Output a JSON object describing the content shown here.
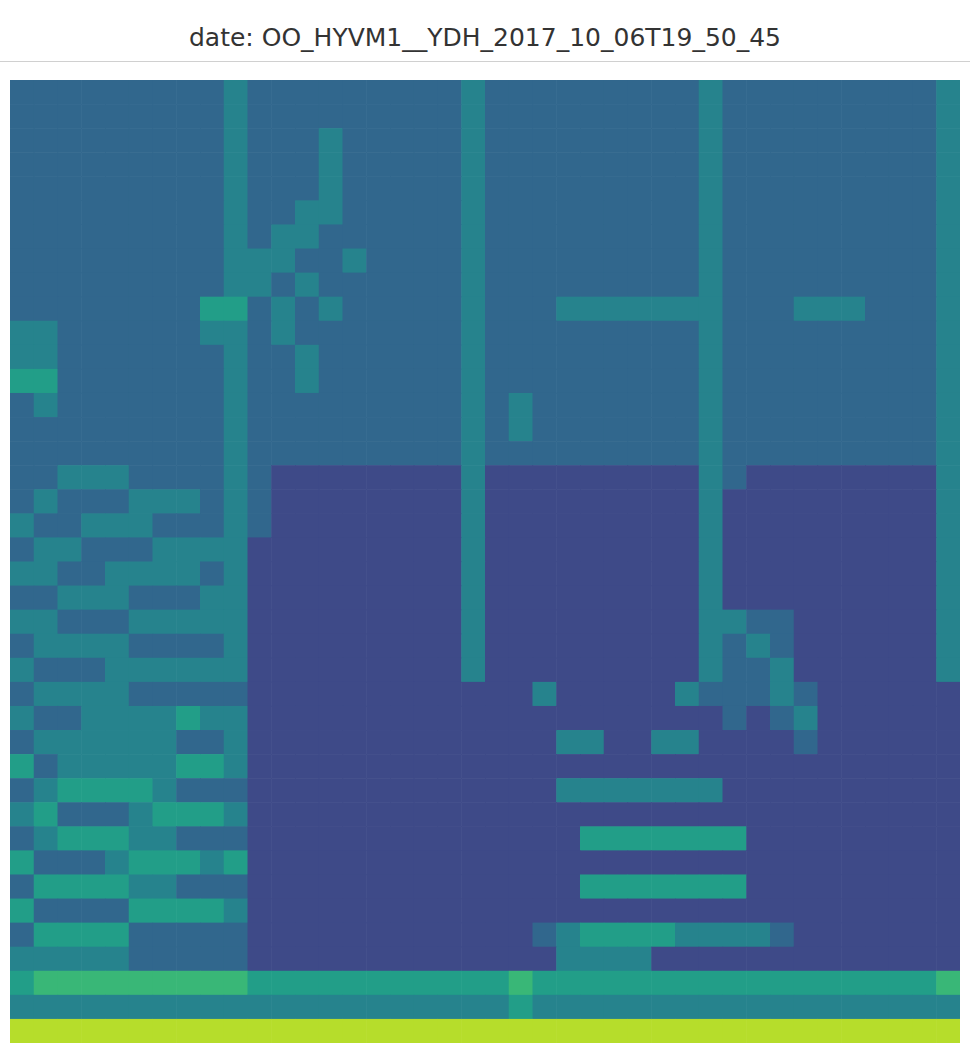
{
  "chart_data": {
    "type": "heatmap",
    "title": "date: OO_HYVM1__YDH_2017_10_06T19_50_45",
    "tick_labels": false,
    "xlim": [
      0,
      40
    ],
    "ylim": [
      0,
      40
    ],
    "zlim": [
      0,
      9
    ],
    "cells": [
      [
        3,
        3,
        3,
        3,
        3,
        3,
        3,
        3,
        3,
        4,
        3,
        3,
        3,
        3,
        3,
        3,
        3,
        3,
        3,
        4,
        3,
        3,
        3,
        3,
        3,
        3,
        3,
        3,
        3,
        4,
        3,
        3,
        3,
        3,
        3,
        3,
        3,
        3,
        3,
        4
      ],
      [
        3,
        3,
        3,
        3,
        3,
        3,
        3,
        3,
        3,
        4,
        3,
        3,
        3,
        3,
        3,
        3,
        3,
        3,
        3,
        4,
        3,
        3,
        3,
        3,
        3,
        3,
        3,
        3,
        3,
        4,
        3,
        3,
        3,
        3,
        3,
        3,
        3,
        3,
        3,
        4
      ],
      [
        3,
        3,
        3,
        3,
        3,
        3,
        3,
        3,
        3,
        4,
        3,
        3,
        3,
        4,
        3,
        3,
        3,
        3,
        3,
        4,
        3,
        3,
        3,
        3,
        3,
        3,
        3,
        3,
        3,
        4,
        3,
        3,
        3,
        3,
        3,
        3,
        3,
        3,
        3,
        4
      ],
      [
        3,
        3,
        3,
        3,
        3,
        3,
        3,
        3,
        3,
        4,
        3,
        3,
        3,
        4,
        3,
        3,
        3,
        3,
        3,
        4,
        3,
        3,
        3,
        3,
        3,
        3,
        3,
        3,
        3,
        4,
        3,
        3,
        3,
        3,
        3,
        3,
        3,
        3,
        3,
        4
      ],
      [
        3,
        3,
        3,
        3,
        3,
        3,
        3,
        3,
        3,
        4,
        3,
        3,
        3,
        4,
        3,
        3,
        3,
        3,
        3,
        4,
        3,
        3,
        3,
        3,
        3,
        3,
        3,
        3,
        3,
        4,
        3,
        3,
        3,
        3,
        3,
        3,
        3,
        3,
        3,
        4
      ],
      [
        3,
        3,
        3,
        3,
        3,
        3,
        3,
        3,
        3,
        4,
        3,
        3,
        4,
        4,
        3,
        3,
        3,
        3,
        3,
        4,
        3,
        3,
        3,
        3,
        3,
        3,
        3,
        3,
        3,
        4,
        3,
        3,
        3,
        3,
        3,
        3,
        3,
        3,
        3,
        4
      ],
      [
        3,
        3,
        3,
        3,
        3,
        3,
        3,
        3,
        3,
        4,
        3,
        4,
        4,
        3,
        3,
        3,
        3,
        3,
        3,
        4,
        3,
        3,
        3,
        3,
        3,
        3,
        3,
        3,
        3,
        4,
        3,
        3,
        3,
        3,
        3,
        3,
        3,
        3,
        3,
        4
      ],
      [
        3,
        3,
        3,
        3,
        3,
        3,
        3,
        3,
        3,
        4,
        4,
        4,
        3,
        3,
        4,
        3,
        3,
        3,
        3,
        4,
        3,
        3,
        3,
        3,
        3,
        3,
        3,
        3,
        3,
        4,
        3,
        3,
        3,
        3,
        3,
        3,
        3,
        3,
        3,
        4
      ],
      [
        3,
        3,
        3,
        3,
        3,
        3,
        3,
        3,
        3,
        4,
        4,
        3,
        4,
        3,
        3,
        3,
        3,
        3,
        3,
        4,
        3,
        3,
        3,
        3,
        3,
        3,
        3,
        3,
        3,
        4,
        3,
        3,
        3,
        3,
        3,
        3,
        3,
        3,
        3,
        4
      ],
      [
        3,
        3,
        3,
        3,
        3,
        3,
        3,
        3,
        5,
        5,
        3,
        4,
        3,
        4,
        3,
        3,
        3,
        3,
        3,
        4,
        3,
        3,
        3,
        4,
        4,
        4,
        4,
        4,
        4,
        4,
        3,
        3,
        3,
        4,
        4,
        4,
        3,
        3,
        3,
        4
      ],
      [
        4,
        4,
        3,
        3,
        3,
        3,
        3,
        3,
        4,
        4,
        3,
        4,
        3,
        3,
        3,
        3,
        3,
        3,
        3,
        4,
        3,
        3,
        3,
        3,
        3,
        3,
        3,
        3,
        3,
        4,
        3,
        3,
        3,
        3,
        3,
        3,
        3,
        3,
        3,
        4
      ],
      [
        4,
        4,
        3,
        3,
        3,
        3,
        3,
        3,
        3,
        4,
        3,
        3,
        4,
        3,
        3,
        3,
        3,
        3,
        3,
        4,
        3,
        3,
        3,
        3,
        3,
        3,
        3,
        3,
        3,
        4,
        3,
        3,
        3,
        3,
        3,
        3,
        3,
        3,
        3,
        4
      ],
      [
        5,
        5,
        3,
        3,
        3,
        3,
        3,
        3,
        3,
        4,
        3,
        3,
        4,
        3,
        3,
        3,
        3,
        3,
        3,
        4,
        3,
        3,
        3,
        3,
        3,
        3,
        3,
        3,
        3,
        4,
        3,
        3,
        3,
        3,
        3,
        3,
        3,
        3,
        3,
        4
      ],
      [
        3,
        4,
        3,
        3,
        3,
        3,
        3,
        3,
        3,
        4,
        3,
        3,
        3,
        3,
        3,
        3,
        3,
        3,
        3,
        4,
        3,
        4,
        3,
        3,
        3,
        3,
        3,
        3,
        3,
        4,
        3,
        3,
        3,
        3,
        3,
        3,
        3,
        3,
        3,
        4
      ],
      [
        3,
        3,
        3,
        3,
        3,
        3,
        3,
        3,
        3,
        4,
        3,
        3,
        3,
        3,
        3,
        3,
        3,
        3,
        3,
        4,
        3,
        4,
        3,
        3,
        3,
        3,
        3,
        3,
        3,
        4,
        3,
        3,
        3,
        3,
        3,
        3,
        3,
        3,
        3,
        4
      ],
      [
        3,
        3,
        3,
        3,
        3,
        3,
        3,
        3,
        3,
        4,
        3,
        3,
        3,
        3,
        3,
        3,
        3,
        3,
        3,
        4,
        3,
        3,
        3,
        3,
        3,
        3,
        3,
        3,
        3,
        4,
        3,
        3,
        3,
        3,
        3,
        3,
        3,
        3,
        3,
        4
      ],
      [
        3,
        3,
        4,
        4,
        4,
        3,
        3,
        3,
        3,
        4,
        3,
        2,
        2,
        2,
        2,
        2,
        2,
        2,
        2,
        4,
        2,
        2,
        2,
        2,
        2,
        2,
        2,
        2,
        2,
        4,
        3,
        2,
        2,
        2,
        2,
        2,
        2,
        2,
        2,
        4
      ],
      [
        3,
        4,
        3,
        3,
        3,
        4,
        4,
        4,
        3,
        4,
        3,
        2,
        2,
        2,
        2,
        2,
        2,
        2,
        2,
        4,
        2,
        2,
        2,
        2,
        2,
        2,
        2,
        2,
        2,
        4,
        2,
        2,
        2,
        2,
        2,
        2,
        2,
        2,
        2,
        4
      ],
      [
        4,
        3,
        3,
        4,
        4,
        4,
        3,
        3,
        3,
        4,
        3,
        2,
        2,
        2,
        2,
        2,
        2,
        2,
        2,
        4,
        2,
        2,
        2,
        2,
        2,
        2,
        2,
        2,
        2,
        4,
        2,
        2,
        2,
        2,
        2,
        2,
        2,
        2,
        2,
        4
      ],
      [
        3,
        4,
        4,
        3,
        3,
        3,
        4,
        4,
        4,
        4,
        2,
        2,
        2,
        2,
        2,
        2,
        2,
        2,
        2,
        4,
        2,
        2,
        2,
        2,
        2,
        2,
        2,
        2,
        2,
        4,
        2,
        2,
        2,
        2,
        2,
        2,
        2,
        2,
        2,
        4
      ],
      [
        4,
        4,
        3,
        3,
        4,
        4,
        4,
        4,
        3,
        4,
        2,
        2,
        2,
        2,
        2,
        2,
        2,
        2,
        2,
        4,
        2,
        2,
        2,
        2,
        2,
        2,
        2,
        2,
        2,
        4,
        2,
        2,
        2,
        2,
        2,
        2,
        2,
        2,
        2,
        4
      ],
      [
        3,
        3,
        4,
        4,
        4,
        3,
        3,
        3,
        4,
        4,
        2,
        2,
        2,
        2,
        2,
        2,
        2,
        2,
        2,
        4,
        2,
        2,
        2,
        2,
        2,
        2,
        2,
        2,
        2,
        4,
        2,
        2,
        2,
        2,
        2,
        2,
        2,
        2,
        2,
        4
      ],
      [
        4,
        4,
        3,
        3,
        3,
        4,
        4,
        4,
        4,
        4,
        2,
        2,
        2,
        2,
        2,
        2,
        2,
        2,
        2,
        4,
        2,
        2,
        2,
        2,
        2,
        2,
        2,
        2,
        2,
        4,
        4,
        3,
        3,
        2,
        2,
        2,
        2,
        2,
        2,
        4
      ],
      [
        3,
        4,
        4,
        4,
        4,
        3,
        3,
        3,
        3,
        4,
        2,
        2,
        2,
        2,
        2,
        2,
        2,
        2,
        2,
        4,
        2,
        2,
        2,
        2,
        2,
        2,
        2,
        2,
        2,
        4,
        3,
        4,
        3,
        2,
        2,
        2,
        2,
        2,
        2,
        4
      ],
      [
        4,
        3,
        3,
        3,
        4,
        4,
        4,
        4,
        4,
        4,
        2,
        2,
        2,
        2,
        2,
        2,
        2,
        2,
        2,
        4,
        2,
        2,
        2,
        2,
        2,
        2,
        2,
        2,
        2,
        4,
        3,
        3,
        4,
        2,
        2,
        2,
        2,
        2,
        2,
        4
      ],
      [
        3,
        4,
        4,
        4,
        4,
        3,
        3,
        3,
        3,
        3,
        2,
        2,
        2,
        2,
        2,
        2,
        2,
        2,
        2,
        2,
        2,
        2,
        4,
        2,
        2,
        2,
        2,
        2,
        4,
        3,
        3,
        3,
        4,
        3,
        2,
        2,
        2,
        2,
        2,
        2
      ],
      [
        4,
        3,
        3,
        4,
        4,
        4,
        4,
        5,
        4,
        4,
        2,
        2,
        2,
        2,
        2,
        2,
        2,
        2,
        2,
        2,
        2,
        2,
        2,
        2,
        2,
        2,
        2,
        2,
        2,
        2,
        3,
        2,
        3,
        4,
        2,
        2,
        2,
        2,
        2,
        2
      ],
      [
        3,
        4,
        4,
        4,
        4,
        4,
        4,
        3,
        3,
        4,
        2,
        2,
        2,
        2,
        2,
        2,
        2,
        2,
        2,
        2,
        2,
        2,
        2,
        4,
        4,
        2,
        2,
        4,
        4,
        2,
        2,
        2,
        2,
        3,
        2,
        2,
        2,
        2,
        2,
        2
      ],
      [
        5,
        3,
        4,
        4,
        4,
        4,
        4,
        5,
        5,
        4,
        2,
        2,
        2,
        2,
        2,
        2,
        2,
        2,
        2,
        2,
        2,
        2,
        2,
        2,
        2,
        2,
        2,
        2,
        2,
        2,
        2,
        2,
        2,
        2,
        2,
        2,
        2,
        2,
        2,
        2
      ],
      [
        3,
        4,
        5,
        5,
        5,
        5,
        4,
        3,
        3,
        3,
        2,
        2,
        2,
        2,
        2,
        2,
        2,
        2,
        2,
        2,
        2,
        2,
        2,
        4,
        4,
        4,
        4,
        4,
        4,
        4,
        2,
        2,
        2,
        2,
        2,
        2,
        2,
        2,
        2,
        2
      ],
      [
        4,
        5,
        3,
        3,
        3,
        4,
        5,
        5,
        5,
        4,
        2,
        2,
        2,
        2,
        2,
        2,
        2,
        2,
        2,
        2,
        2,
        2,
        2,
        2,
        2,
        2,
        2,
        2,
        2,
        2,
        2,
        2,
        2,
        2,
        2,
        2,
        2,
        2,
        2,
        2
      ],
      [
        3,
        4,
        5,
        5,
        5,
        4,
        4,
        3,
        3,
        3,
        2,
        2,
        2,
        2,
        2,
        2,
        2,
        2,
        2,
        2,
        2,
        2,
        2,
        2,
        5,
        5,
        5,
        5,
        5,
        5,
        5,
        2,
        2,
        2,
        2,
        2,
        2,
        2,
        2,
        2
      ],
      [
        5,
        3,
        3,
        3,
        4,
        5,
        5,
        5,
        4,
        5,
        2,
        2,
        2,
        2,
        2,
        2,
        2,
        2,
        2,
        2,
        2,
        2,
        2,
        2,
        2,
        2,
        2,
        2,
        2,
        2,
        2,
        2,
        2,
        2,
        2,
        2,
        2,
        2,
        2,
        2
      ],
      [
        3,
        5,
        5,
        5,
        5,
        4,
        4,
        3,
        3,
        3,
        2,
        2,
        2,
        2,
        2,
        2,
        2,
        2,
        2,
        2,
        2,
        2,
        2,
        2,
        5,
        5,
        5,
        5,
        5,
        5,
        5,
        2,
        2,
        2,
        2,
        2,
        2,
        2,
        2,
        2
      ],
      [
        5,
        3,
        3,
        3,
        3,
        5,
        5,
        5,
        5,
        4,
        2,
        2,
        2,
        2,
        2,
        2,
        2,
        2,
        2,
        2,
        2,
        2,
        2,
        2,
        2,
        2,
        2,
        2,
        2,
        2,
        2,
        2,
        2,
        2,
        2,
        2,
        2,
        2,
        2,
        2
      ],
      [
        3,
        5,
        5,
        5,
        5,
        3,
        3,
        3,
        3,
        3,
        2,
        2,
        2,
        2,
        2,
        2,
        2,
        2,
        2,
        2,
        2,
        2,
        3,
        4,
        5,
        5,
        5,
        5,
        4,
        4,
        4,
        4,
        3,
        2,
        2,
        2,
        2,
        2,
        2,
        2
      ],
      [
        4,
        4,
        4,
        4,
        4,
        3,
        3,
        3,
        3,
        3,
        2,
        2,
        2,
        2,
        2,
        2,
        2,
        2,
        2,
        2,
        2,
        2,
        2,
        4,
        4,
        4,
        4,
        2,
        2,
        2,
        2,
        2,
        2,
        2,
        2,
        2,
        2,
        2,
        2,
        2
      ],
      [
        5,
        6,
        6,
        6,
        6,
        6,
        6,
        6,
        6,
        6,
        5,
        5,
        5,
        5,
        5,
        5,
        5,
        5,
        5,
        5,
        5,
        6,
        5,
        5,
        5,
        5,
        5,
        5,
        5,
        5,
        5,
        5,
        5,
        5,
        5,
        5,
        5,
        5,
        5,
        6
      ],
      [
        4,
        4,
        4,
        4,
        4,
        4,
        4,
        4,
        4,
        4,
        4,
        4,
        4,
        4,
        4,
        4,
        4,
        4,
        4,
        4,
        4,
        5,
        4,
        4,
        4,
        4,
        4,
        4,
        4,
        4,
        4,
        4,
        4,
        4,
        4,
        4,
        4,
        4,
        4,
        4
      ],
      [
        8,
        8,
        8,
        8,
        8,
        8,
        8,
        8,
        8,
        8,
        8,
        8,
        8,
        8,
        8,
        8,
        8,
        8,
        8,
        8,
        8,
        8,
        8,
        8,
        8,
        8,
        8,
        8,
        8,
        8,
        8,
        8,
        8,
        8,
        8,
        8,
        8,
        8,
        8,
        8
      ]
    ]
  }
}
